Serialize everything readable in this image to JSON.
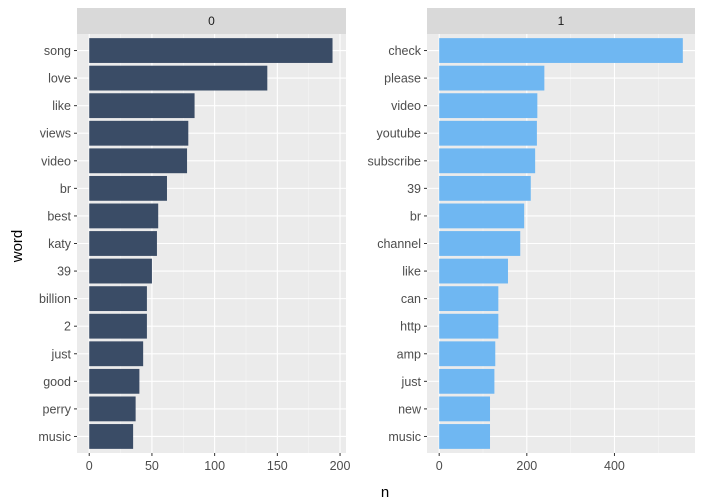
{
  "chart_data": {
    "type": "bar",
    "orientation": "horizontal",
    "faceted": true,
    "xlabel": "n",
    "ylabel": "word",
    "grid": true,
    "legend": "none",
    "colors": {
      "panel_background": "#ebebeb",
      "strip_background": "#d9d9d9",
      "grid_major": "#ffffff",
      "grid_minor": "#f5f5f5"
    },
    "panels": [
      {
        "title": "0",
        "color": "#3a4c66",
        "xlim": [
          -9.75,
          204.75
        ],
        "xticks": [
          0,
          50,
          100,
          150,
          200
        ],
        "categories": [
          "song",
          "love",
          "like",
          "views",
          "video",
          "br",
          "best",
          "katy",
          "39",
          "billion",
          "2",
          "just",
          "good",
          "perry",
          "music"
        ],
        "values": [
          194,
          142,
          84,
          79,
          78,
          62,
          55,
          54,
          50,
          46,
          46,
          43,
          40,
          37,
          35
        ]
      },
      {
        "title": "1",
        "color": "#6fb7f2",
        "xlim": [
          -27.8,
          583.8
        ],
        "xticks": [
          0,
          200,
          400
        ],
        "categories": [
          "check",
          "please",
          "video",
          "youtube",
          "subscribe",
          "39",
          "br",
          "channel",
          "like",
          "can",
          "http",
          "amp",
          "just",
          "new",
          "music"
        ],
        "values": [
          556,
          240,
          224,
          223,
          219,
          209,
          194,
          185,
          157,
          135,
          135,
          128,
          126,
          116,
          116
        ]
      }
    ]
  }
}
